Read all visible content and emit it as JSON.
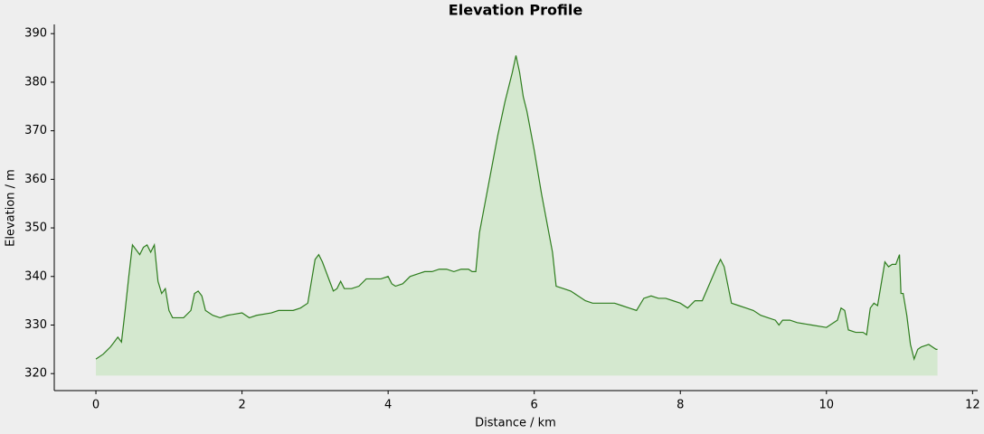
{
  "chart_data": {
    "type": "area",
    "title": "Elevation Profile",
    "xlabel": "Distance / km",
    "ylabel": "Elevation / m",
    "line_color": "#2e7d1e",
    "fill_color": "#d4e8cf",
    "fill_to": 319.6,
    "x": [
      0.0,
      0.1,
      0.2,
      0.3,
      0.35,
      0.4,
      0.45,
      0.5,
      0.6,
      0.65,
      0.7,
      0.75,
      0.8,
      0.85,
      0.9,
      0.95,
      1.0,
      1.05,
      1.2,
      1.3,
      1.35,
      1.4,
      1.45,
      1.5,
      1.6,
      1.7,
      1.8,
      2.0,
      2.1,
      2.2,
      2.4,
      2.5,
      2.7,
      2.8,
      2.9,
      3.0,
      3.05,
      3.1,
      3.2,
      3.25,
      3.3,
      3.35,
      3.4,
      3.5,
      3.6,
      3.7,
      3.8,
      3.9,
      4.0,
      4.05,
      4.1,
      4.2,
      4.3,
      4.4,
      4.5,
      4.6,
      4.7,
      4.8,
      4.9,
      5.0,
      5.1,
      5.15,
      5.2,
      5.25,
      5.3,
      5.4,
      5.5,
      5.6,
      5.7,
      5.75,
      5.8,
      5.85,
      5.9,
      6.0,
      6.1,
      6.2,
      6.25,
      6.3,
      6.4,
      6.5,
      6.6,
      6.7,
      6.8,
      7.0,
      7.1,
      7.2,
      7.3,
      7.4,
      7.5,
      7.6,
      7.7,
      7.8,
      7.9,
      8.0,
      8.1,
      8.2,
      8.3,
      8.4,
      8.5,
      8.55,
      8.6,
      8.7,
      8.8,
      8.9,
      9.0,
      9.1,
      9.2,
      9.3,
      9.35,
      9.4,
      9.5,
      9.6,
      9.8,
      10.0,
      10.1,
      10.15,
      10.2,
      10.25,
      10.3,
      10.4,
      10.5,
      10.55,
      10.6,
      10.65,
      10.7,
      10.8,
      10.85,
      10.9,
      10.95,
      11.0,
      11.02,
      11.05,
      11.1,
      11.15,
      11.2,
      11.25,
      11.3,
      11.4,
      11.5,
      11.52
    ],
    "values": [
      323,
      324,
      325.5,
      327.5,
      326.5,
      333,
      340,
      346.5,
      344.5,
      346,
      346.5,
      345,
      346.5,
      339,
      336.5,
      337.5,
      333,
      331.5,
      331.5,
      333,
      336.5,
      337,
      336,
      333,
      332,
      331.5,
      332,
      332.5,
      331.5,
      332,
      332.5,
      333,
      333,
      333.5,
      334.5,
      343.5,
      344.5,
      343,
      339,
      337,
      337.5,
      339,
      337.5,
      337.5,
      338,
      339.5,
      339.5,
      339.5,
      340,
      338.5,
      338,
      338.5,
      340,
      340.5,
      341,
      341,
      341.5,
      341.5,
      341,
      341.5,
      341.5,
      341,
      341,
      349,
      353,
      361,
      369,
      376,
      382,
      385.5,
      382,
      377,
      374,
      366,
      357,
      349,
      345,
      338,
      337.5,
      337,
      336,
      335,
      334.5,
      334.5,
      334.5,
      334,
      333.5,
      333,
      335.5,
      336,
      335.5,
      335.5,
      335,
      334.5,
      333.5,
      335,
      335,
      338.5,
      342,
      343.5,
      342,
      334.5,
      334,
      333.5,
      333,
      332,
      331.5,
      331,
      330,
      331,
      331,
      330.5,
      330,
      329.5,
      330.5,
      331,
      333.5,
      333,
      329,
      328.5,
      328.5,
      328,
      333.5,
      334.5,
      334,
      343,
      342,
      342.5,
      342.5,
      344.5,
      336.5,
      336.5,
      332,
      326,
      323,
      325,
      325.5,
      326,
      325,
      325
    ],
    "xlim": [
      -0.57,
      12.07
    ],
    "ylim": [
      316.5,
      391.9
    ],
    "xticks": [
      0,
      2,
      4,
      6,
      8,
      10,
      12
    ],
    "yticks": [
      320,
      330,
      340,
      350,
      360,
      370,
      380,
      390
    ]
  }
}
